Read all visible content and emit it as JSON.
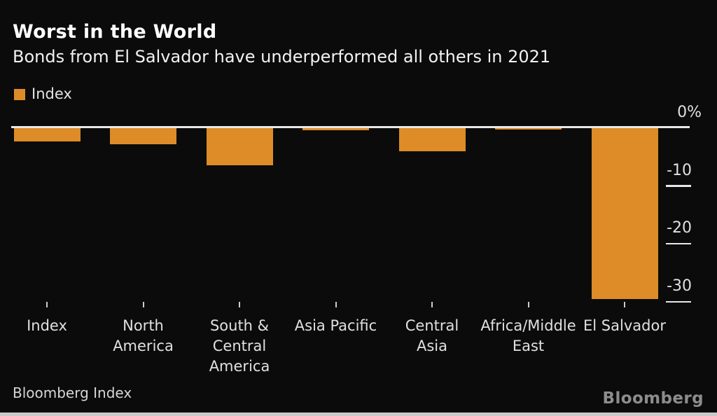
{
  "header": {
    "title": "Worst in the World",
    "subtitle": "Bonds from El Salvador have underperformed all others in 2021"
  },
  "legend": {
    "label": "Index"
  },
  "chart_data": {
    "type": "bar",
    "title": "Worst in the World",
    "subtitle": "Bonds from El Salvador have underperformed all others in 2021",
    "series_name": "Index",
    "categories": [
      "Index",
      "North America",
      "South & Central America",
      "Asia Pacific",
      "Central Asia",
      "Africa/Middle East",
      "El Salvador"
    ],
    "category_label_lines": [
      [
        "Index"
      ],
      [
        "North",
        "America"
      ],
      [
        "South &",
        "Central",
        "America"
      ],
      [
        "Asia Pacific"
      ],
      [
        "Central",
        "Asia"
      ],
      [
        "Africa/Middle",
        "East"
      ],
      [
        "El Salvador"
      ]
    ],
    "values": [
      -2.4,
      -2.9,
      -6.5,
      -0.4,
      -4.1,
      -0.3,
      -29.6
    ],
    "unit": "%",
    "xlabel": "",
    "ylabel": "",
    "ylim": [
      -31,
      0
    ],
    "yticks": [
      {
        "label": "0%",
        "value": 0
      },
      {
        "label": "-10",
        "value": -10
      },
      {
        "label": "-20",
        "value": -20
      },
      {
        "label": "-30",
        "value": -30
      }
    ],
    "legend_position": "top-left",
    "grid": "right-edge-tick-segments-only",
    "bar_color": "#dd8c28"
  },
  "footer": {
    "source": "Bloomberg Index",
    "brand": "Bloomberg"
  },
  "colors": {
    "background": "#0b0b0b",
    "bar": "#dd8c28",
    "axis_line": "#e8e8e6",
    "tick": "#cccccc",
    "text_primary": "#ffffff",
    "text_secondary": "#e0e0e0",
    "brand": "#8d8d8d",
    "bottom_strip": "#c9c9c9"
  }
}
